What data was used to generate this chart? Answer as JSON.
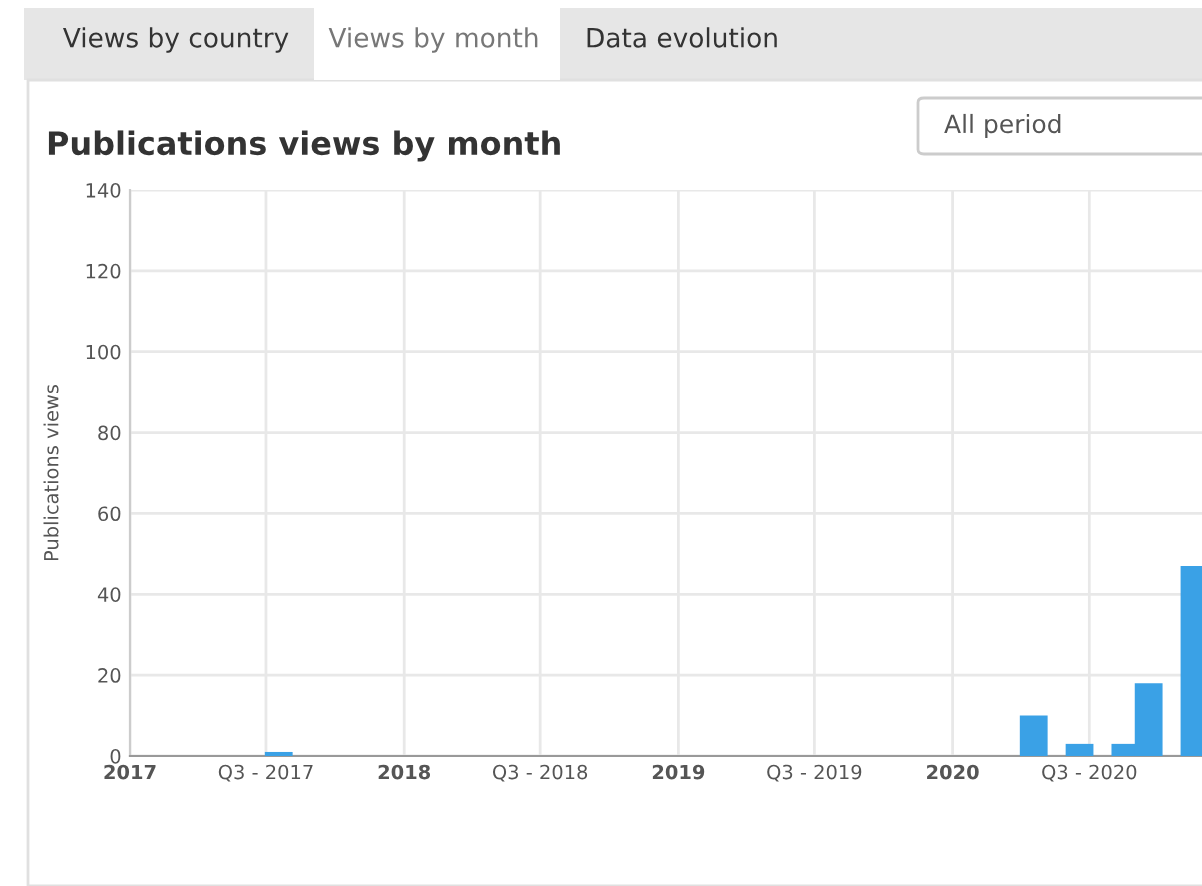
{
  "chart_data": {
    "type": "bar",
    "title": "Publications views by month",
    "ylabel": "Publications views",
    "annotations": [
      "Views by country",
      "Views by month",
      "Data evolution",
      "All period"
    ],
    "x": [
      "2017-07-18",
      "2020-04-18",
      "2020-06-18",
      "2020-08-18",
      "2020-09-18",
      "2020-11-18"
    ],
    "series": [
      {
        "color": "#3aa1e6",
        "values": [
          1,
          10,
          3,
          3,
          18,
          47
        ]
      }
    ],
    "xlim": [
      "2017-01-01",
      "2020-11-28"
    ],
    "xticks": [
      {
        "value": "2017-01",
        "label": "2017"
      },
      {
        "value": "2017-07",
        "label": "Q3 - 2017"
      },
      {
        "value": "2018-01",
        "label": "2018"
      },
      {
        "value": "2018-07",
        "label": "Q3 - 2018"
      },
      {
        "value": "2019-01",
        "label": "2019"
      },
      {
        "value": "2019-07",
        "label": "Q3 - 2019"
      },
      {
        "value": "2020-01",
        "label": "2020"
      },
      {
        "value": "2020-07",
        "label": "Q3 - 2020"
      }
    ],
    "ylim": [
      0,
      140
    ],
    "yticks": [
      0,
      20,
      40,
      60,
      80,
      100,
      120,
      140
    ],
    "grid": true
  }
}
